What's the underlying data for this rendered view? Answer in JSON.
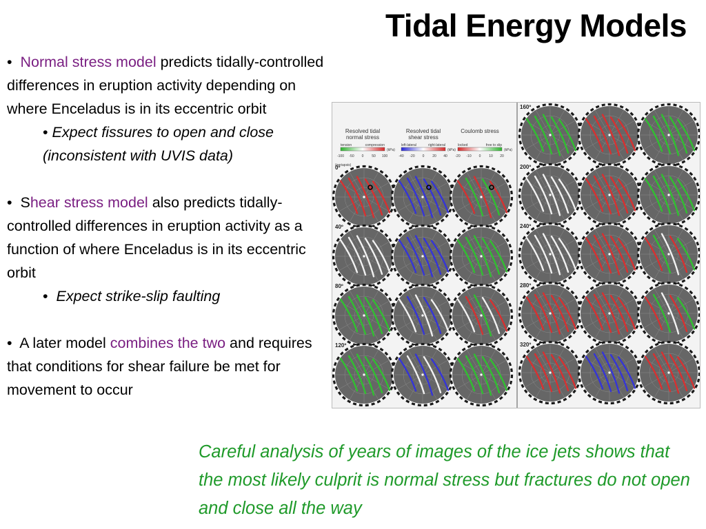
{
  "slide": {
    "title": "Tidal Energy Models",
    "bullets": [
      {
        "bullet": "•",
        "pre": "",
        "highlight": "Normal stress model",
        "post": " predicts tidally-controlled differences in eruption activity depending on where Enceladus is in its  eccentric orbit",
        "sub": {
          "bullet": "•",
          "text": "Expect fissures to open and close (inconsistent with UVIS data)"
        }
      },
      {
        "bullet": "•",
        "pre": "S",
        "highlight": "hear stress model",
        "post": " also predicts tidally-controlled differences in eruption activity as a function of where Enceladus is in its  eccentric orbit",
        "sub": {
          "bullet": "•",
          "text": "Expect strike-slip faulting"
        }
      },
      {
        "bullet": "•",
        "pre": "A later model ",
        "highlight": "combines the two",
        "post": " and requires that conditions for shear failure be met for movement to occur"
      }
    ],
    "conclusion": "Careful analysis of years of images of the ice jets shows that the most likely culprit is normal stress but fractures do not open and close all the way"
  },
  "figure": {
    "legend": [
      {
        "title_lines": [
          "Resolved tidal",
          "normal stress"
        ],
        "left_label": "tension",
        "right_label": "compression",
        "unit": "(kPa)",
        "ticks": [
          "-100",
          "-50",
          "0",
          "50",
          "100"
        ],
        "colors": [
          "#2fb32f",
          "#ffffff",
          "#d62a2a"
        ]
      },
      {
        "title_lines": [
          "Resolved tidal",
          "shear stress"
        ],
        "left_label": "left-lateral",
        "right_label": "right-lateral",
        "unit": "(kPa)",
        "ticks": [
          "-40",
          "-20",
          "0",
          "20",
          "40"
        ],
        "colors": [
          "#2a2ad6",
          "#ffffff",
          "#d62a2a"
        ]
      },
      {
        "title_lines": [
          "Coulomb stress"
        ],
        "left_label": "locked",
        "right_label": "free to slip",
        "unit": "(kPa)",
        "ticks": [
          "-20",
          "-10",
          "0",
          "10",
          "20"
        ],
        "colors": [
          "#d62a2a",
          "#ffffff",
          "#2fb32f"
        ]
      }
    ],
    "periapsis_label": "(periapsis)",
    "left_rows": [
      {
        "angle": "0º",
        "panels": [
          "red",
          "blue",
          "redgreen"
        ]
      },
      {
        "angle": "40º",
        "panels": [
          "white",
          "blue",
          "green"
        ]
      },
      {
        "angle": "80º",
        "panels": [
          "green",
          "bluewhite",
          "mixed"
        ]
      },
      {
        "angle": "120º",
        "panels": [
          "green",
          "bluewhite",
          "green"
        ]
      }
    ],
    "right_rows": [
      {
        "angle": "160º",
        "panels": [
          "green",
          "red",
          "green"
        ]
      },
      {
        "angle": "200º",
        "panels": [
          "white",
          "red",
          "green"
        ]
      },
      {
        "angle": "240º",
        "panels": [
          "white",
          "red",
          "mixed"
        ]
      },
      {
        "angle": "280º",
        "panels": [
          "red",
          "red",
          "mixed"
        ]
      },
      {
        "angle": "320º",
        "panels": [
          "red",
          "blue",
          "red"
        ]
      }
    ],
    "palette": {
      "red": "#d83030",
      "green": "#30c030",
      "blue": "#3434d8",
      "white": "#f2f2f2",
      "disk": "#666666",
      "grid": "#8a8a8a",
      "rim_dark": "#1a1a1a",
      "rim_light": "#ffffff"
    }
  }
}
